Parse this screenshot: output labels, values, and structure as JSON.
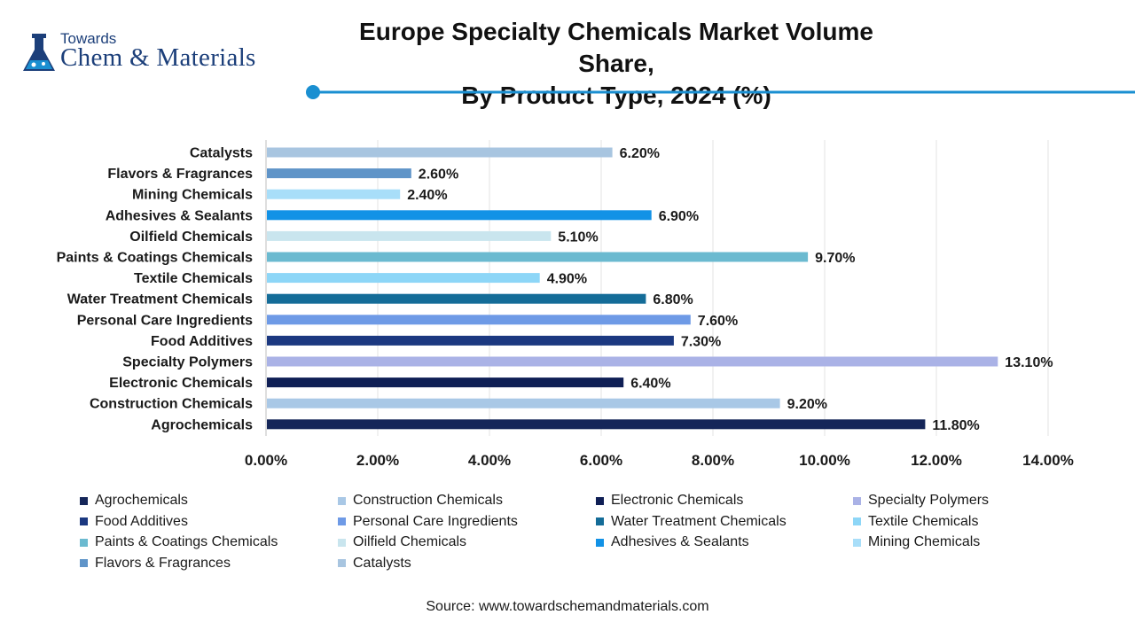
{
  "logo": {
    "top_text": "Towards",
    "main_text": "Chem & Materials"
  },
  "title_lines": [
    "Europe Specialty Chemicals Market Volume Share,",
    "By Product Type, 2024 (%)"
  ],
  "source": "Source: www.towardschemandmaterials.com",
  "colors": {
    "title_rule": "#1a8fd1"
  },
  "chart_data": {
    "type": "bar",
    "orientation": "horizontal",
    "title": "Europe Specialty Chemicals Market Volume Share, By Product Type, 2024 (%)",
    "xlabel": "",
    "ylabel": "",
    "xlim": [
      0,
      14
    ],
    "x_ticks": [
      "0.00%",
      "2.00%",
      "4.00%",
      "6.00%",
      "8.00%",
      "10.00%",
      "12.00%",
      "14.00%"
    ],
    "x_grid": true,
    "legend_position": "bottom",
    "categories": [
      "Agrochemicals",
      "Construction Chemicals",
      "Electronic Chemicals",
      "Specialty Polymers",
      "Food Additives",
      "Personal Care Ingredients",
      "Water Treatment Chemicals",
      "Textile Chemicals",
      "Paints & Coatings Chemicals",
      "Oilfield Chemicals",
      "Adhesives & Sealants",
      "Mining Chemicals",
      "Flavors & Fragrances",
      "Catalysts"
    ],
    "values": [
      11.8,
      9.2,
      6.4,
      13.1,
      7.3,
      7.6,
      6.8,
      4.9,
      9.7,
      5.1,
      6.9,
      2.4,
      2.6,
      6.2
    ],
    "data_labels": [
      "11.80%",
      "9.20%",
      "6.40%",
      "13.10%",
      "7.30%",
      "7.60%",
      "6.80%",
      "4.90%",
      "9.70%",
      "5.10%",
      "6.90%",
      "2.40%",
      "2.60%",
      "6.20%"
    ],
    "colors": [
      "#152659",
      "#a9c8e6",
      "#0f1f55",
      "#aab2e6",
      "#1b3880",
      "#6e9ae6",
      "#146c98",
      "#8dd6f7",
      "#6bbad0",
      "#c9e5ee",
      "#1292e6",
      "#a8def9",
      "#5f94c8",
      "#a8c5e0"
    ]
  }
}
